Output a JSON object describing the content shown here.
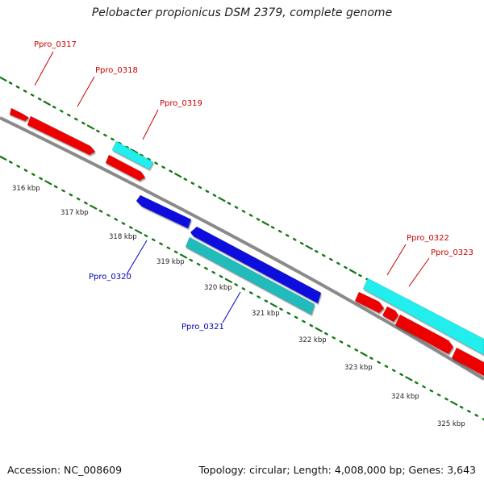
{
  "title": "Pelobacter propionicus DSM 2379, complete genome",
  "footer": {
    "accession": "Accession: NC_008609",
    "summary": "Topology: circular; Length: 4,008,000 bp; Genes: 3,643"
  },
  "colors": {
    "backbone": "#8a8a8a",
    "red": "#ee0000",
    "cyan": "#22eeee",
    "blue": "#1111dd",
    "teal": "#22bbbb",
    "ticks": "#117711",
    "labelRed": "#cc0000",
    "labelBlue": "#0000bb"
  },
  "scale_labels": [
    "316 kbp",
    "317 kbp",
    "318 kbp",
    "319 kbp",
    "320 kbp",
    "321 kbp",
    "322 kbp",
    "323 kbp",
    "324 kbp",
    "325 kbp"
  ],
  "gene_labels": [
    {
      "text": "Ppro_0317",
      "color": "red"
    },
    {
      "text": "Ppro_0318",
      "color": "red"
    },
    {
      "text": "Ppro_0319",
      "color": "red"
    },
    {
      "text": "Ppro_0320",
      "color": "blue"
    },
    {
      "text": "Ppro_0321",
      "color": "blue"
    },
    {
      "text": "Ppro_0322",
      "color": "red"
    },
    {
      "text": "Ppro_0323",
      "color": "red"
    }
  ]
}
